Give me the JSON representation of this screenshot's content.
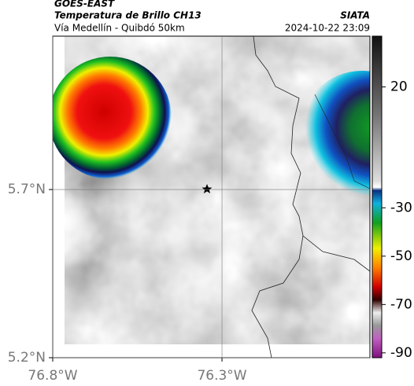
{
  "header": {
    "title": "GOES-EAST",
    "subtitle": "Temperatura de Brillo CH13",
    "location": "Vía Medellín - Quibdó 50km",
    "source": "SIATA",
    "datetime": "2024-10-22 23:09"
  },
  "map": {
    "xlim": [
      -76.8,
      -75.863
    ],
    "ylim": [
      5.2,
      6.156
    ],
    "xticks": [
      {
        "value": -76.8,
        "label": "76.8°W"
      },
      {
        "value": -76.3,
        "label": "76.3°W"
      }
    ],
    "yticks": [
      {
        "value": 5.7,
        "label": "5.7°N"
      },
      {
        "value": 5.2,
        "label": "5.2°N"
      }
    ],
    "grid": true
  },
  "colorbar": {
    "range": [
      -92,
      41
    ],
    "ticks": [
      20,
      -30,
      -50,
      -70,
      -90
    ]
  }
}
